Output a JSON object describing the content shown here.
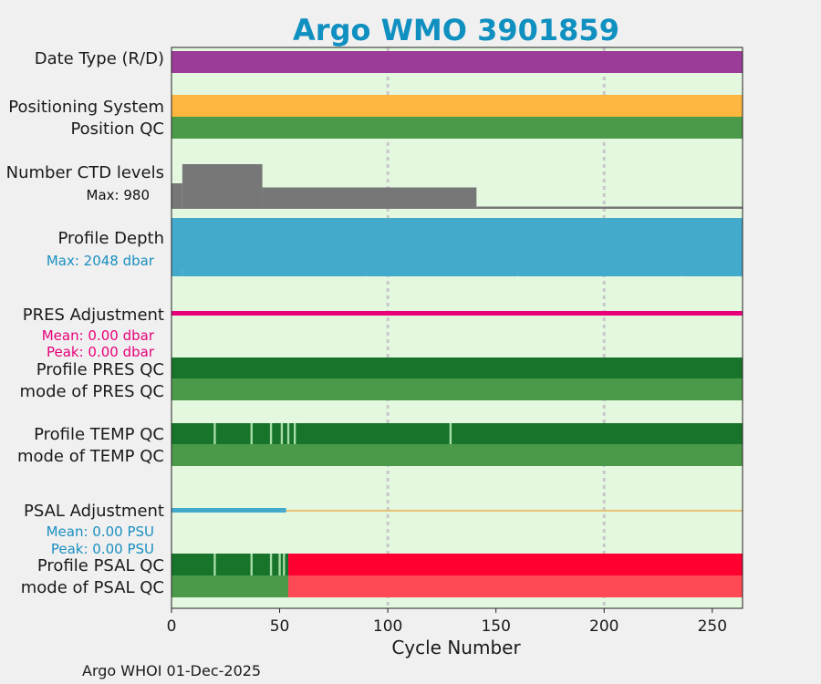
{
  "chart_data": {
    "type": "bar",
    "title": "Argo WMO 3901859",
    "xlabel": "Cycle Number",
    "xlim": [
      0,
      264
    ],
    "xticks": [
      0,
      50,
      100,
      150,
      200,
      250
    ],
    "vertical_grid_lines": [
      100,
      200
    ],
    "footer": "Argo WHOI 01-Dec-2025",
    "colors": {
      "title": "#1090c0",
      "background": "#f0f0f0",
      "plot_bg": "#e4f8df",
      "date_type": "#9b3d98",
      "positioning": "#fdb740",
      "qc_good_light": "#4a9a4a",
      "qc_good_dark": "#17742a",
      "qc_bad_red": "#ff0030",
      "qc_bad_light_red": "#ff4a55",
      "ctd": "#777777",
      "depth": "#44aacc",
      "pres_adj": "#e8007a",
      "psal_adj_line": "#e8b050",
      "psal_adj_start": "#44aacc"
    },
    "rows": {
      "date_type": {
        "label": "Date Type (R/D)"
      },
      "positioning": {
        "label": "Positioning System"
      },
      "position_qc": {
        "label": "Position QC"
      },
      "ctd_levels": {
        "label": "Number CTD levels",
        "max_label": "Max: 980",
        "max": 980,
        "segments": [
          {
            "from": 0,
            "to": 5,
            "level": 560
          },
          {
            "from": 5,
            "to": 42,
            "level": 980
          },
          {
            "from": 42,
            "to": 141,
            "level": 470
          },
          {
            "from": 141,
            "to": 264,
            "level": 50
          }
        ]
      },
      "profile_depth": {
        "label": "Profile Depth",
        "max_label": "Max: 2048 dbar",
        "max": 2048
      },
      "pres_adjustment": {
        "label": "PRES Adjustment",
        "mean_label": "Mean: 0.00 dbar",
        "peak_label": "Peak: 0.00 dbar"
      },
      "profile_pres_qc": {
        "label": "Profile PRES QC"
      },
      "mode_pres_qc": {
        "label": "mode of PRES QC"
      },
      "profile_temp_qc": {
        "label": "Profile TEMP QC",
        "light_cycles": [
          20,
          37,
          46,
          51,
          54,
          57,
          129
        ]
      },
      "mode_temp_qc": {
        "label": "mode of TEMP QC"
      },
      "psal_adjustment": {
        "label": "PSAL Adjustment",
        "mean_label": "Mean: 0.00 PSU",
        "peak_label": "Peak: 0.00 PSU",
        "adjusted_until": 53
      },
      "profile_psal_qc": {
        "label": "Profile PSAL QC",
        "light_cycles": [
          20,
          37,
          46,
          50,
          52
        ],
        "bad_from": 54
      },
      "mode_psal_qc": {
        "label": "mode of PSAL QC",
        "bad_from": 54
      }
    }
  }
}
